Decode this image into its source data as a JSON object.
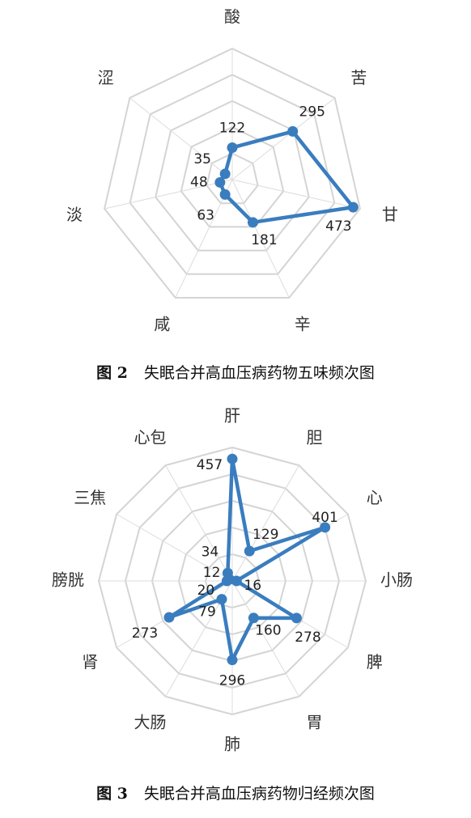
{
  "colors": {
    "series": "#3a7dbf",
    "grid": "#d4d4d4"
  },
  "figures": [
    {
      "caption_num": "图 2",
      "caption_text": "失眠合并高血压病药物五味频次图"
    },
    {
      "caption_num": "图 3",
      "caption_text": "失眠合并高血压病药物归经频次图"
    }
  ],
  "chart_data": [
    {
      "type": "radar",
      "title": "",
      "categories": [
        "酸",
        "苦",
        "甘",
        "辛",
        "咸",
        "淡",
        "涩"
      ],
      "values": [
        122,
        295,
        473,
        181,
        63,
        48,
        35
      ],
      "value_labels": [
        "122",
        "295",
        "473",
        "181",
        "63",
        "48",
        "35"
      ],
      "grid_levels": 5,
      "legend": "none"
    },
    {
      "type": "radar",
      "title": "",
      "categories": [
        "肝",
        "胆",
        "心",
        "小肠",
        "脾",
        "胃",
        "肺",
        "大肠",
        "肾",
        "膀胱",
        "三焦",
        "心包"
      ],
      "values": [
        457,
        129,
        401,
        16,
        278,
        160,
        296,
        79,
        273,
        20,
        12,
        34
      ],
      "value_labels": [
        "457",
        "129",
        "401",
        "16",
        "278",
        "160",
        "296",
        "79",
        "273",
        "20",
        "12",
        "34"
      ],
      "grid_levels": 5,
      "legend": "none"
    }
  ]
}
